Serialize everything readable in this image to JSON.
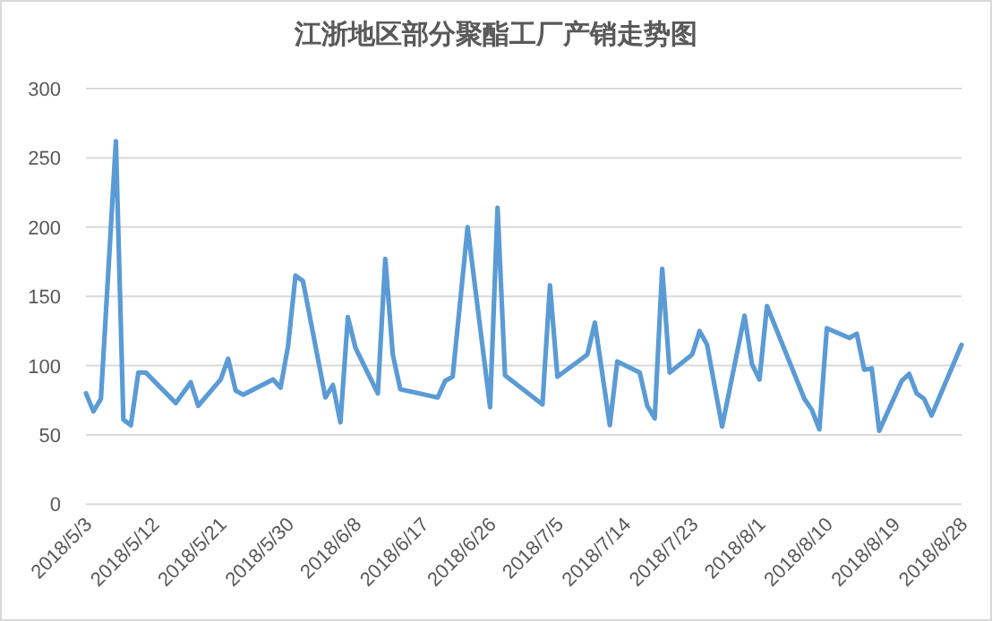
{
  "chart_data": {
    "type": "line",
    "title": "江浙地区部分聚酯工厂产销走势图",
    "x": [
      "2018-05-03",
      "2018-05-04",
      "2018-05-05",
      "2018-05-07",
      "2018-05-08",
      "2018-05-09",
      "2018-05-10",
      "2018-05-11",
      "2018-05-15",
      "2018-05-17",
      "2018-05-18",
      "2018-05-21",
      "2018-05-22",
      "2018-05-23",
      "2018-05-24",
      "2018-05-28",
      "2018-05-29",
      "2018-05-30",
      "2018-05-31",
      "2018-06-01",
      "2018-06-04",
      "2018-06-05",
      "2018-06-06",
      "2018-06-07",
      "2018-06-08",
      "2018-06-11",
      "2018-06-12",
      "2018-06-13",
      "2018-06-14",
      "2018-06-19",
      "2018-06-20",
      "2018-06-21",
      "2018-06-23",
      "2018-06-26",
      "2018-06-27",
      "2018-06-28",
      "2018-07-03",
      "2018-07-04",
      "2018-07-05",
      "2018-07-09",
      "2018-07-10",
      "2018-07-12",
      "2018-07-13",
      "2018-07-16",
      "2018-07-17",
      "2018-07-18",
      "2018-07-19",
      "2018-07-20",
      "2018-07-23",
      "2018-07-24",
      "2018-07-25",
      "2018-07-27",
      "2018-07-30",
      "2018-07-31",
      "2018-08-01",
      "2018-08-02",
      "2018-08-07",
      "2018-08-08",
      "2018-08-09",
      "2018-08-10",
      "2018-08-13",
      "2018-08-14",
      "2018-08-15",
      "2018-08-16",
      "2018-08-17",
      "2018-08-20",
      "2018-08-21",
      "2018-08-22",
      "2018-08-23",
      "2018-08-24",
      "2018-08-28"
    ],
    "series": [
      {
        "color": "#5b9bd5",
        "values": [
          80,
          67,
          76,
          262,
          61,
          57,
          95,
          95,
          73,
          88,
          71,
          90,
          105,
          82,
          79,
          90,
          84,
          114,
          165,
          161,
          77,
          86,
          59,
          135,
          113,
          80,
          177,
          108,
          83,
          77,
          89,
          92,
          200,
          70,
          214,
          93,
          72,
          158,
          92,
          108,
          131,
          57,
          103,
          95,
          71,
          62,
          170,
          95,
          108,
          125,
          115,
          56,
          136,
          101,
          90,
          143,
          76,
          68,
          54,
          127,
          120,
          123,
          97,
          98,
          53,
          89,
          94,
          80,
          76,
          64,
          115
        ]
      }
    ],
    "xlim": [
      "2018-05-03",
      "2018-08-28"
    ],
    "xticks": [
      {
        "value": "2018-05-03",
        "label": "2018/5/3"
      },
      {
        "value": "2018-05-12",
        "label": "2018/5/12"
      },
      {
        "value": "2018-05-21",
        "label": "2018/5/21"
      },
      {
        "value": "2018-05-30",
        "label": "2018/5/30"
      },
      {
        "value": "2018-06-08",
        "label": "2018/6/8"
      },
      {
        "value": "2018-06-17",
        "label": "2018/6/17"
      },
      {
        "value": "2018-06-26",
        "label": "2018/6/26"
      },
      {
        "value": "2018-07-05",
        "label": "2018/7/5"
      },
      {
        "value": "2018-07-14",
        "label": "2018/7/14"
      },
      {
        "value": "2018-07-23",
        "label": "2018/7/23"
      },
      {
        "value": "2018-08-01",
        "label": "2018/8/1"
      },
      {
        "value": "2018-08-10",
        "label": "2018/8/10"
      },
      {
        "value": "2018-08-19",
        "label": "2018/8/19"
      },
      {
        "value": "2018-08-28",
        "label": "2018/8/28"
      }
    ],
    "ylim": [
      0,
      300
    ],
    "yticks": [
      0,
      50,
      100,
      150,
      200,
      250,
      300
    ],
    "grid": "y",
    "line_style": "solid"
  }
}
